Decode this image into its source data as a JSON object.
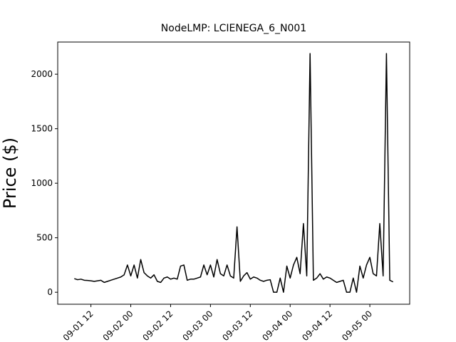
{
  "chart_data": {
    "type": "line",
    "title": "NodeLMP: LCIENEGA_6_N001",
    "y_label": "Price ($)",
    "x": [
      "09-01 07",
      "09-01 08",
      "09-01 09",
      "09-01 10",
      "09-01 11",
      "09-01 12",
      "09-01 13",
      "09-01 14",
      "09-01 15",
      "09-01 16",
      "09-01 17",
      "09-01 18",
      "09-01 19",
      "09-01 20",
      "09-01 21",
      "09-01 22",
      "09-01 23",
      "09-02 00",
      "09-02 01",
      "09-02 02",
      "09-02 03",
      "09-02 04",
      "09-02 05",
      "09-02 06",
      "09-02 07",
      "09-02 08",
      "09-02 09",
      "09-02 10",
      "09-02 11",
      "09-02 12",
      "09-02 13",
      "09-02 14",
      "09-02 15",
      "09-02 16",
      "09-02 17",
      "09-02 18",
      "09-02 19",
      "09-02 20",
      "09-02 21",
      "09-02 22",
      "09-02 23",
      "09-03 00",
      "09-03 01",
      "09-03 02",
      "09-03 03",
      "09-03 04",
      "09-03 05",
      "09-03 06",
      "09-03 07",
      "09-03 08",
      "09-03 09",
      "09-03 10",
      "09-03 11",
      "09-03 12",
      "09-03 13",
      "09-03 14",
      "09-03 15",
      "09-03 16",
      "09-03 17",
      "09-03 18",
      "09-03 19",
      "09-03 20",
      "09-03 21",
      "09-03 22",
      "09-03 23",
      "09-04 00",
      "09-04 01",
      "09-04 02",
      "09-04 03",
      "09-04 04",
      "09-04 05",
      "09-04 06",
      "09-04 07",
      "09-04 08",
      "09-04 09",
      "09-04 10",
      "09-04 11",
      "09-04 12",
      "09-04 13",
      "09-04 14",
      "09-04 15",
      "09-04 16",
      "09-04 17",
      "09-04 18",
      "09-04 19",
      "09-04 20",
      "09-04 21",
      "09-04 22",
      "09-04 23",
      "09-05 00",
      "09-05 01",
      "09-05 02",
      "09-05 03",
      "09-05 04",
      "09-05 05",
      "09-05 06",
      "09-05 07"
    ],
    "series": [
      {
        "name": "LCIENEGA_6_N001",
        "color": "#000000",
        "values": [
          125,
          115,
          120,
          110,
          108,
          105,
          100,
          105,
          110,
          90,
          100,
          110,
          120,
          130,
          140,
          160,
          250,
          150,
          250,
          130,
          300,
          180,
          150,
          130,
          160,
          100,
          90,
          130,
          140,
          120,
          130,
          120,
          240,
          250,
          110,
          120,
          120,
          130,
          140,
          250,
          160,
          250,
          140,
          300,
          170,
          150,
          250,
          150,
          130,
          600,
          100,
          150,
          180,
          120,
          140,
          130,
          110,
          100,
          110,
          115,
          0,
          0,
          130,
          0,
          240,
          130,
          250,
          320,
          170,
          630,
          150,
          2190,
          110,
          130,
          170,
          120,
          140,
          130,
          110,
          90,
          100,
          110,
          0,
          0,
          130,
          0,
          240,
          130,
          250,
          320,
          170,
          150,
          630,
          150,
          2190,
          110,
          95
        ]
      }
    ],
    "xlim": [
      "09-01 02",
      "09-05 12"
    ],
    "xticks": [
      "09-01 12",
      "09-02 00",
      "09-02 12",
      "09-03 00",
      "09-03 12",
      "09-04 00",
      "09-04 12",
      "09-05 00"
    ],
    "ylim": [
      -110,
      2295
    ],
    "yticks": [
      0,
      500,
      1000,
      1500,
      2000
    ],
    "grid": false
  }
}
